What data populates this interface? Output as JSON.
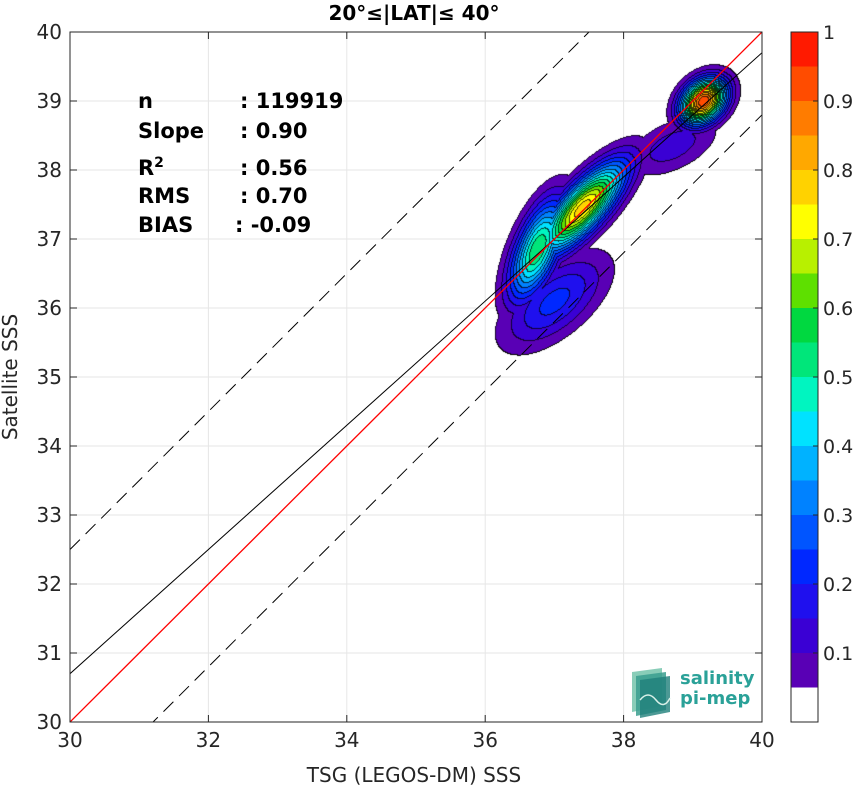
{
  "chart_data": {
    "type": "heatmap",
    "title": "20°≤|LAT|≤ 40°",
    "xlabel": "TSG (LEGOS-DM) SSS",
    "ylabel": "Satellite SSS",
    "xlim": [
      30,
      40
    ],
    "ylim": [
      30,
      40
    ],
    "x_ticks": [
      "30",
      "32",
      "34",
      "36",
      "38",
      "40"
    ],
    "y_ticks": [
      "30",
      "31",
      "32",
      "33",
      "34",
      "35",
      "36",
      "37",
      "38",
      "39",
      "40"
    ],
    "grid": true,
    "stats": [
      {
        "label": "n",
        "value": ": 119919"
      },
      {
        "label": "Slope",
        "value": ": 0.90"
      },
      {
        "label": "R",
        "sup": "2",
        "value": ": 0.56"
      },
      {
        "label": "RMS",
        "value": ": 0.70"
      },
      {
        "label": "BIAS",
        "value": ": -0.09"
      }
    ],
    "lines": {
      "identity": {
        "color": "#ff0000",
        "x": [
          30,
          40
        ],
        "y": [
          30,
          40
        ]
      },
      "fit": {
        "color": "#000000",
        "slope": 0.9,
        "intercept": 3.7
      },
      "upper_dashed": {
        "color": "#000000",
        "slope": 1.0,
        "intercept": 2.5
      },
      "lower_dashed": {
        "color": "#000000",
        "slope": 1.0,
        "intercept": -1.2
      }
    },
    "density_peaks": [
      {
        "x": 37.4,
        "y": 37.45,
        "sx": 0.42,
        "sy": 0.45,
        "rho": 0.78,
        "amp": 0.78
      },
      {
        "x": 36.75,
        "y": 36.85,
        "sx": 0.28,
        "sy": 0.5,
        "rho": 0.6,
        "amp": 0.55
      },
      {
        "x": 37.0,
        "y": 36.1,
        "sx": 0.5,
        "sy": 0.45,
        "rho": 0.6,
        "amp": 0.22
      },
      {
        "x": 39.15,
        "y": 39.0,
        "sx": 0.22,
        "sy": 0.22,
        "rho": 0.3,
        "amp": 0.95
      },
      {
        "x": 38.7,
        "y": 38.35,
        "sx": 0.45,
        "sy": 0.3,
        "rho": 0.5,
        "amp": 0.13
      }
    ],
    "colorbar": {
      "ticks": [
        "0.1",
        "0.2",
        "0.3",
        "0.4",
        "0.5",
        "0.6",
        "0.7",
        "0.8",
        "0.9",
        "1"
      ],
      "levels": [
        0.05,
        0.1,
        0.15,
        0.2,
        0.25,
        0.3,
        0.35,
        0.4,
        0.45,
        0.5,
        0.55,
        0.6,
        0.65,
        0.7,
        0.75,
        0.8,
        0.85,
        0.9,
        0.95
      ],
      "colors": [
        "#ffffff",
        "#5900b5",
        "#3a00d4",
        "#1f10ee",
        "#0028ff",
        "#0055ff",
        "#0082ff",
        "#00b2ff",
        "#00e2ff",
        "#00f5c0",
        "#00e67a",
        "#00d840",
        "#5ee000",
        "#b8f000",
        "#ffff00",
        "#ffd200",
        "#ffa800",
        "#ff7c00",
        "#ff4c00",
        "#ff1a00",
        "#8b0000"
      ]
    }
  },
  "logo": {
    "line1": "salinity",
    "line2": "pi-mep"
  }
}
